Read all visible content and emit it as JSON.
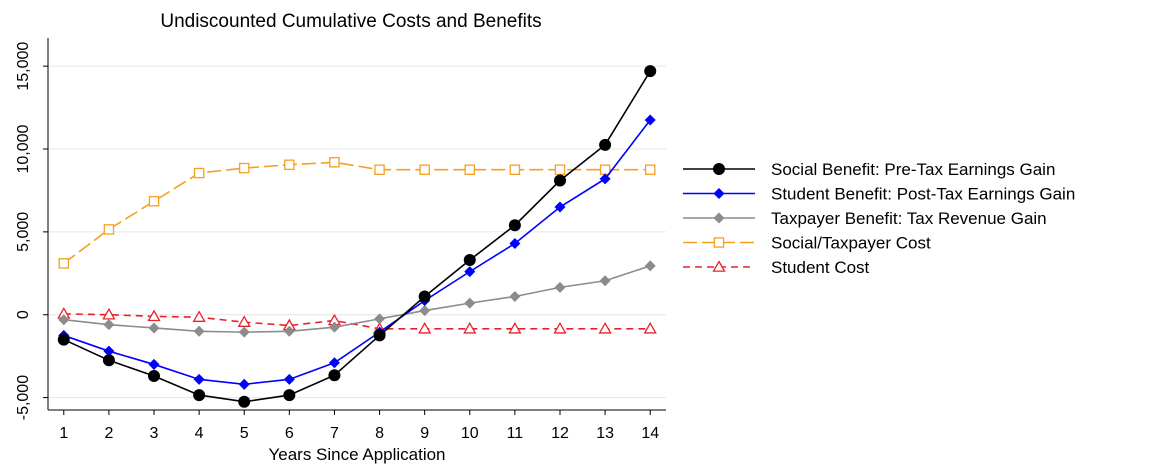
{
  "chart_data": {
    "type": "line",
    "title": "Undiscounted Cumulative Costs and Benefits",
    "xlabel": "Years Since Application",
    "ylabel": "",
    "x": [
      1,
      2,
      3,
      4,
      5,
      6,
      7,
      8,
      9,
      10,
      11,
      12,
      13,
      14
    ],
    "x_ticks": [
      "1",
      "2",
      "3",
      "4",
      "5",
      "6",
      "7",
      "8",
      "9",
      "10",
      "11",
      "12",
      "13",
      "14"
    ],
    "xlim": [
      0.65,
      14.35
    ],
    "ylim": [
      -5750,
      16700
    ],
    "y_ticks": [
      -5000,
      0,
      5000,
      10000,
      15000
    ],
    "y_tick_labels": [
      "-5,000",
      "0",
      "5,000",
      "10,000",
      "15,000"
    ],
    "grid": true,
    "legend_position": "right",
    "series": [
      {
        "name": "Social Benefit: Pre-Tax Earnings Gain",
        "color": "#000000",
        "marker": "circle-filled",
        "line_style": "solid",
        "values": [
          -1500,
          -2750,
          -3700,
          -4850,
          -5250,
          -4850,
          -3650,
          -1250,
          1100,
          3300,
          5400,
          8100,
          10250,
          14700
        ]
      },
      {
        "name": "Student Benefit: Post-Tax Earnings Gain",
        "color": "#0000ff",
        "marker": "diamond-filled",
        "line_style": "solid",
        "values": [
          -1250,
          -2200,
          -3000,
          -3900,
          -4200,
          -3900,
          -2900,
          -1050,
          850,
          2600,
          4300,
          6500,
          8200,
          11750
        ]
      },
      {
        "name": "Taxpayer Benefit: Tax Revenue Gain",
        "color": "#8c8c8c",
        "marker": "diamond-filled",
        "line_style": "solid",
        "values": [
          -300,
          -600,
          -800,
          -1000,
          -1050,
          -1000,
          -750,
          -250,
          250,
          700,
          1100,
          1650,
          2050,
          2950
        ]
      },
      {
        "name": "Social/Taxpayer Cost",
        "color": "#f5a020",
        "marker": "square-hollow",
        "line_style": "longdash",
        "values": [
          3100,
          5150,
          6850,
          8550,
          8850,
          9050,
          9200,
          8750,
          8750,
          8750,
          8750,
          8750,
          8750,
          8750
        ]
      },
      {
        "name": "Student Cost",
        "color": "#e8212b",
        "marker": "triangle-hollow",
        "line_style": "dash",
        "values": [
          50,
          0,
          -100,
          -150,
          -450,
          -650,
          -350,
          -850,
          -850,
          -850,
          -850,
          -850,
          -850,
          -850
        ]
      }
    ]
  }
}
